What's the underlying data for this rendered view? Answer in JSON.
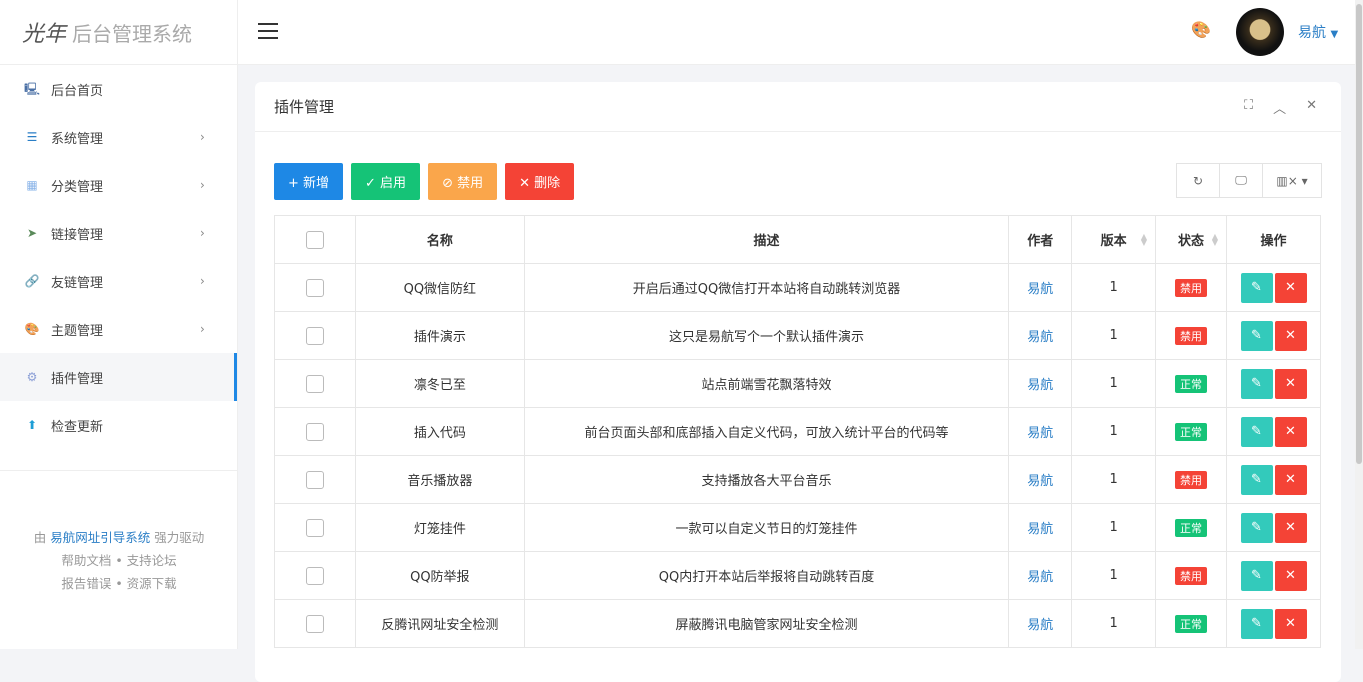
{
  "brand": {
    "logo": "光年",
    "title": "后台管理系统"
  },
  "sidebar": {
    "items": [
      {
        "label": "后台首页",
        "icon": "monitor-icon",
        "chevron": false
      },
      {
        "label": "系统管理",
        "icon": "sliders-icon",
        "chevron": true
      },
      {
        "label": "分类管理",
        "icon": "grid-icon",
        "chevron": true
      },
      {
        "label": "链接管理",
        "icon": "send-icon",
        "chevron": true
      },
      {
        "label": "友链管理",
        "icon": "link-icon",
        "chevron": true
      },
      {
        "label": "主题管理",
        "icon": "palette-icon",
        "chevron": true
      },
      {
        "label": "插件管理",
        "icon": "plugin-icon",
        "chevron": false,
        "active": true
      },
      {
        "label": "检查更新",
        "icon": "upload-icon",
        "chevron": false
      }
    ],
    "footer": {
      "prefix": "由",
      "link": "易航网址引导系统",
      "suffix": "强力驱动",
      "help": "帮助文档",
      "forum": "支持论坛",
      "report": "报告错误",
      "download": "资源下载",
      "sep": "•"
    }
  },
  "header": {
    "user": "易航"
  },
  "card": {
    "title": "插件管理"
  },
  "toolbar": {
    "add": "+ 新增",
    "enable": "✓ 启用",
    "disable": "⊘ 禁用",
    "delete": "✕ 删除"
  },
  "colors": {
    "add": "#1e88e5",
    "enable": "#15c377",
    "disable": "#faa64b",
    "delete": "#f44336",
    "edit": "#33cabb"
  },
  "table": {
    "headers": [
      "名称",
      "描述",
      "作者",
      "版本",
      "状态",
      "操作"
    ],
    "rows": [
      {
        "name": "QQ微信防红",
        "desc": "开启后通过QQ微信打开本站将自动跳转浏览器",
        "author": "易航",
        "version": "1",
        "status": "禁用"
      },
      {
        "name": "插件演示",
        "desc": "这只是易航写个一个默认插件演示",
        "author": "易航",
        "version": "1",
        "status": "禁用"
      },
      {
        "name": "凛冬已至",
        "desc": "站点前端雪花飘落特效",
        "author": "易航",
        "version": "1",
        "status": "正常"
      },
      {
        "name": "插入代码",
        "desc": "前台页面头部和底部插入自定义代码，可放入统计平台的代码等",
        "author": "易航",
        "version": "1",
        "status": "正常"
      },
      {
        "name": "音乐播放器",
        "desc": "支持播放各大平台音乐",
        "author": "易航",
        "version": "1",
        "status": "禁用"
      },
      {
        "name": "灯笼挂件",
        "desc": "一款可以自定义节日的灯笼挂件",
        "author": "易航",
        "version": "1",
        "status": "正常"
      },
      {
        "name": "QQ防举报",
        "desc": "QQ内打开本站后举报将自动跳转百度",
        "author": "易航",
        "version": "1",
        "status": "禁用"
      },
      {
        "name": "反腾讯网址安全检测",
        "desc": "屏蔽腾讯电脑管家网址安全检测",
        "author": "易航",
        "version": "1",
        "status": "正常"
      }
    ]
  }
}
